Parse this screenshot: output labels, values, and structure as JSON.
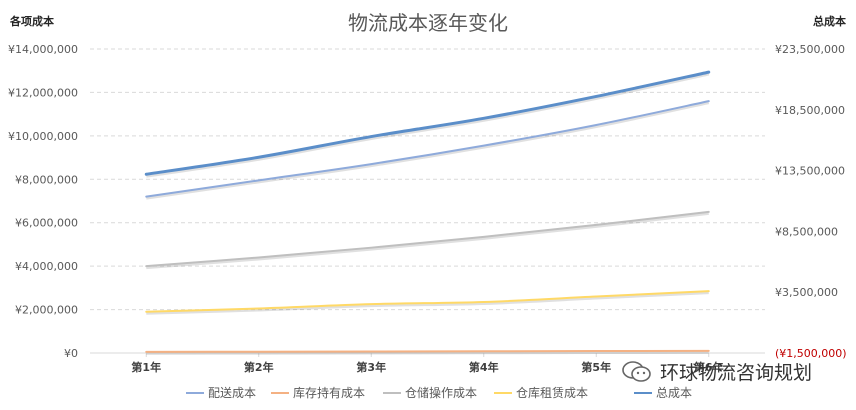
{
  "chart_data": {
    "type": "line",
    "title": "物流成本逐年变化",
    "left_axis_label": "各项成本",
    "right_axis_label": "总成本",
    "categories": [
      "第1年",
      "第2年",
      "第3年",
      "第4年",
      "第5年",
      "第6年"
    ],
    "left_ticks": [
      "¥0",
      "¥2,000,000",
      "¥4,000,000",
      "¥6,000,000",
      "¥8,000,000",
      "¥10,000,000",
      "¥12,000,000",
      "¥14,000,000"
    ],
    "right_ticks": [
      "(¥1,500,000)",
      "¥3,500,000",
      "¥8,500,000",
      "¥13,500,000",
      "¥18,500,000",
      "¥23,500,000"
    ],
    "ylim_left": [
      0,
      14000000
    ],
    "ylim_right": [
      -1500000,
      23500000
    ],
    "grid": true,
    "legend_position": "bottom",
    "series": [
      {
        "name": "配送成本",
        "axis": "left",
        "color": "#8eaadb",
        "values": [
          7200000,
          7950000,
          8700000,
          9550000,
          10500000,
          11600000
        ]
      },
      {
        "name": "库存持有成本",
        "axis": "left",
        "color": "#f4b183",
        "values": [
          50000,
          60000,
          70000,
          80000,
          90000,
          100000
        ]
      },
      {
        "name": "仓储操作成本",
        "axis": "left",
        "color": "#bfbfbf",
        "values": [
          4000000,
          4400000,
          4850000,
          5350000,
          5900000,
          6500000
        ]
      },
      {
        "name": "仓库租赁成本",
        "axis": "left",
        "color": "#ffd966",
        "values": [
          1900000,
          2050000,
          2250000,
          2350000,
          2600000,
          2850000
        ]
      },
      {
        "name": "总成本",
        "axis": "right",
        "color": "#5b8ec9",
        "values": [
          13200000,
          14600000,
          16300000,
          17800000,
          19600000,
          21600000
        ]
      }
    ],
    "colors": {
      "grid": "#d9d9d9",
      "tick_text": "#595959",
      "negative_tick": "#c00000",
      "title": "#595959"
    }
  },
  "watermark": {
    "text": "环球物流咨询规划"
  }
}
